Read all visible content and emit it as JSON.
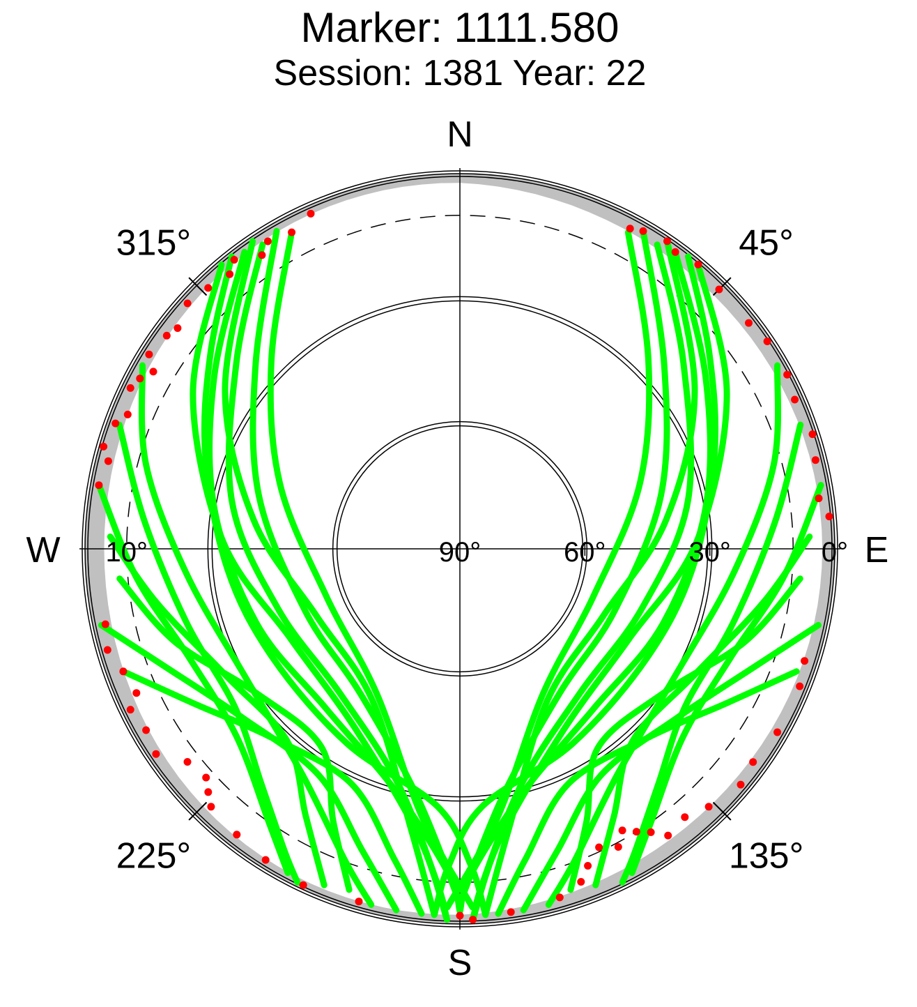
{
  "chart_data": {
    "type": "scatter",
    "subtype": "polar-skyplot",
    "title": "Marker: 1111.580",
    "subtitle": "Session: 1381 Year: 22",
    "directions": {
      "north": "N",
      "east": "E",
      "south": "S",
      "west": "W"
    },
    "azimuth_labels": [
      {
        "azimuth": 45,
        "label": "45°"
      },
      {
        "azimuth": 135,
        "label": "135°"
      },
      {
        "azimuth": 225,
        "label": "225°"
      },
      {
        "azimuth": 315,
        "label": "315°"
      }
    ],
    "elevation_labels": [
      {
        "elevation": 0,
        "label": "0°"
      },
      {
        "elevation": 30,
        "label": "30°"
      },
      {
        "elevation": 60,
        "label": "60°"
      },
      {
        "elevation": 90,
        "label": "90°"
      },
      {
        "elevation": 10,
        "label": "10°"
      }
    ],
    "elevation_range": [
      0,
      90
    ],
    "rings": [
      {
        "elevation": 30,
        "style": "double-solid"
      },
      {
        "elevation": 60,
        "style": "double-solid"
      },
      {
        "elevation": 10,
        "style": "dashed"
      }
    ],
    "horizon_mask_color": "#c0c0c0",
    "colors": {
      "tracked": "#00ff00",
      "flagged": "#ff0000",
      "mask": "#c0c0c0",
      "axis": "#000000"
    },
    "series": [
      {
        "color": "#00ff00",
        "points_note_type": "az_el_arcs",
        "arcs": [
          [
            [
              38,
              1
            ],
            [
              52,
              14
            ],
            [
              70,
              25
            ],
            [
              95,
              34
            ],
            [
              120,
              38
            ],
            [
              150,
              36
            ],
            [
              175,
              28
            ],
            [
              182,
              14
            ],
            [
              184,
              2
            ]
          ],
          [
            [
              36,
              2
            ],
            [
              55,
              18
            ],
            [
              80,
              30
            ],
            [
              110,
              38
            ],
            [
              140,
              40
            ],
            [
              165,
              30
            ],
            [
              178,
              12
            ],
            [
              180,
              3
            ]
          ],
          [
            [
              33,
              3
            ],
            [
              50,
              20
            ],
            [
              78,
              34
            ],
            [
              108,
              44
            ],
            [
              140,
              45
            ],
            [
              165,
              32
            ],
            [
              176,
              10
            ],
            [
              178,
              1
            ]
          ],
          [
            [
              30,
              2
            ],
            [
              48,
              24
            ],
            [
              75,
              40
            ],
            [
              112,
              50
            ],
            [
              145,
              48
            ],
            [
              170,
              30
            ],
            [
              180,
              5
            ]
          ],
          [
            [
              28,
              4
            ],
            [
              45,
              26
            ],
            [
              70,
              44
            ],
            [
              110,
              56
            ],
            [
              150,
              50
            ],
            [
              172,
              25
            ],
            [
              182,
              4
            ]
          ],
          [
            [
              34,
              1
            ],
            [
              56,
              22
            ],
            [
              82,
              40
            ],
            [
              115,
              52
            ],
            [
              150,
              48
            ],
            [
              170,
              22
            ],
            [
              176,
              2
            ]
          ],
          [
            [
              40,
              1
            ],
            [
              60,
              16
            ],
            [
              88,
              33
            ],
            [
              118,
              44
            ],
            [
              150,
              40
            ],
            [
              172,
              20
            ],
            [
              178,
              1
            ]
          ],
          [
            [
              60,
              2
            ],
            [
              75,
              12
            ],
            [
              95,
              24
            ],
            [
              120,
              30
            ],
            [
              145,
              24
            ],
            [
              160,
              10
            ],
            [
              166,
              2
            ]
          ],
          [
            [
              70,
              3
            ],
            [
              85,
              14
            ],
            [
              105,
              22
            ],
            [
              125,
              24
            ],
            [
              140,
              16
            ],
            [
              150,
              6
            ],
            [
              154,
              1
            ]
          ],
          [
            [
              80,
              2
            ],
            [
              95,
              12
            ],
            [
              112,
              20
            ],
            [
              130,
              20
            ],
            [
              145,
              10
            ],
            [
              152,
              2
            ]
          ],
          [
            [
              88,
              6
            ],
            [
              100,
              16
            ],
            [
              118,
              26
            ],
            [
              138,
              28
            ],
            [
              150,
              16
            ],
            [
              158,
              3
            ]
          ],
          [
            [
              95,
              8
            ],
            [
              108,
              18
            ],
            [
              125,
              30
            ],
            [
              145,
              32
            ],
            [
              155,
              18
            ],
            [
              162,
              4
            ]
          ],
          [
            [
              322,
              1
            ],
            [
              308,
              14
            ],
            [
              290,
              25
            ],
            [
              265,
              34
            ],
            [
              240,
              38
            ],
            [
              210,
              36
            ],
            [
              185,
              28
            ],
            [
              178,
              14
            ],
            [
              176,
              2
            ]
          ],
          [
            [
              324,
              2
            ],
            [
              305,
              18
            ],
            [
              280,
              30
            ],
            [
              250,
              38
            ],
            [
              220,
              40
            ],
            [
              195,
              30
            ],
            [
              182,
              12
            ],
            [
              180,
              3
            ]
          ],
          [
            [
              327,
              3
            ],
            [
              310,
              20
            ],
            [
              282,
              34
            ],
            [
              252,
              44
            ],
            [
              220,
              45
            ],
            [
              195,
              32
            ],
            [
              184,
              10
            ],
            [
              182,
              1
            ]
          ],
          [
            [
              330,
              2
            ],
            [
              312,
              24
            ],
            [
              285,
              40
            ],
            [
              248,
              50
            ],
            [
              215,
              48
            ],
            [
              190,
              30
            ],
            [
              180,
              5
            ]
          ],
          [
            [
              332,
              4
            ],
            [
              315,
              26
            ],
            [
              290,
              44
            ],
            [
              250,
              56
            ],
            [
              210,
              50
            ],
            [
              188,
              25
            ],
            [
              178,
              4
            ]
          ],
          [
            [
              326,
              1
            ],
            [
              304,
              22
            ],
            [
              278,
              40
            ],
            [
              245,
              52
            ],
            [
              210,
              48
            ],
            [
              190,
              22
            ],
            [
              184,
              2
            ]
          ],
          [
            [
              320,
              1
            ],
            [
              300,
              16
            ],
            [
              272,
              33
            ],
            [
              242,
              44
            ],
            [
              210,
              40
            ],
            [
              188,
              20
            ],
            [
              182,
              1
            ]
          ],
          [
            [
              300,
              2
            ],
            [
              285,
              12
            ],
            [
              265,
              24
            ],
            [
              240,
              30
            ],
            [
              215,
              24
            ],
            [
              200,
              10
            ],
            [
              194,
              2
            ]
          ],
          [
            [
              290,
              3
            ],
            [
              275,
              14
            ],
            [
              255,
              22
            ],
            [
              235,
              24
            ],
            [
              220,
              16
            ],
            [
              210,
              6
            ],
            [
              206,
              1
            ]
          ],
          [
            [
              280,
              2
            ],
            [
              265,
              12
            ],
            [
              248,
              20
            ],
            [
              230,
              20
            ],
            [
              215,
              10
            ],
            [
              208,
              2
            ]
          ],
          [
            [
              272,
              6
            ],
            [
              260,
              16
            ],
            [
              242,
              26
            ],
            [
              222,
              28
            ],
            [
              210,
              16
            ],
            [
              202,
              3
            ]
          ],
          [
            [
              265,
              8
            ],
            [
              252,
              18
            ],
            [
              235,
              30
            ],
            [
              215,
              32
            ],
            [
              205,
              18
            ],
            [
              198,
              4
            ]
          ],
          [
            [
              258,
              2
            ],
            [
              248,
              14
            ],
            [
              232,
              24
            ],
            [
              212,
              26
            ],
            [
              198,
              14
            ],
            [
              190,
              2
            ]
          ],
          [
            [
              250,
              4
            ],
            [
              240,
              16
            ],
            [
              225,
              26
            ],
            [
              205,
              28
            ],
            [
              192,
              14
            ],
            [
              186,
              2
            ]
          ],
          [
            [
              102,
              2
            ],
            [
              112,
              14
            ],
            [
              128,
              24
            ],
            [
              148,
              26
            ],
            [
              162,
              14
            ],
            [
              170,
              2
            ]
          ],
          [
            [
              110,
              4
            ],
            [
              120,
              16
            ],
            [
              135,
              26
            ],
            [
              155,
              28
            ],
            [
              168,
              14
            ],
            [
              174,
              2
            ]
          ]
        ]
      },
      {
        "color": "#ff0000",
        "note": "low-elevation flagged observations near horizon",
        "points": [
          [
            28,
            3
          ],
          [
            30,
            2
          ],
          [
            34,
            1
          ],
          [
            36,
            2
          ],
          [
            40,
            1
          ],
          [
            45,
            2
          ],
          [
            52,
            2
          ],
          [
            56,
            1
          ],
          [
            62,
            1
          ],
          [
            66,
            2
          ],
          [
            72,
            1
          ],
          [
            76,
            2
          ],
          [
            82,
            3
          ],
          [
            85,
            1
          ],
          [
            108,
            3
          ],
          [
            112,
            2
          ],
          [
            120,
            2
          ],
          [
            126,
            3
          ],
          [
            130,
            2
          ],
          [
            136,
            4
          ],
          [
            140,
            6
          ],
          [
            144,
            5
          ],
          [
            146,
            8
          ],
          [
            148,
            10
          ],
          [
            150,
            12
          ],
          [
            152,
            9
          ],
          [
            155,
            11
          ],
          [
            158,
            8
          ],
          [
            160,
            5
          ],
          [
            164,
            3
          ],
          [
            172,
            2
          ],
          [
            178,
            1
          ],
          [
            180,
            2
          ],
          [
            196,
            2
          ],
          [
            205,
            1
          ],
          [
            212,
            2
          ],
          [
            218,
            3
          ],
          [
            224,
            4
          ],
          [
            226,
            6
          ],
          [
            228,
            8
          ],
          [
            232,
            7
          ],
          [
            236,
            2
          ],
          [
            240,
            3
          ],
          [
            244,
            2
          ],
          [
            246,
            5
          ],
          [
            250,
            4
          ],
          [
            254,
            2
          ],
          [
            258,
            3
          ],
          [
            280,
            2
          ],
          [
            284,
            3
          ],
          [
            286,
            1
          ],
          [
            290,
            2
          ],
          [
            292,
            4
          ],
          [
            296,
            2
          ],
          [
            298,
            3
          ],
          [
            300,
            5
          ],
          [
            302,
            2
          ],
          [
            306,
            3
          ],
          [
            308,
            4
          ],
          [
            312,
            2
          ],
          [
            316,
            3
          ],
          [
            320,
            4
          ],
          [
            322,
            2
          ],
          [
            326,
            5
          ],
          [
            328,
            3
          ],
          [
            332,
            4
          ],
          [
            336,
            2
          ]
        ]
      }
    ]
  }
}
